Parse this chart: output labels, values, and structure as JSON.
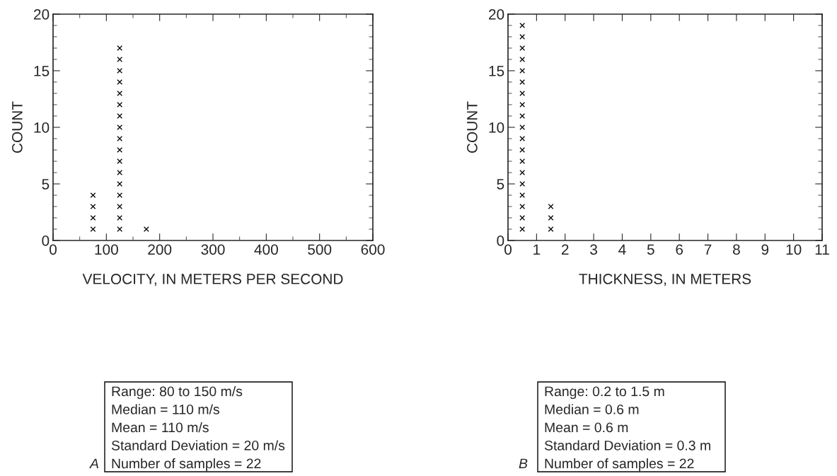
{
  "chart_data": [
    {
      "type": "scatter",
      "xlabel": "VELOCITY, IN METERS PER SECOND",
      "ylabel": "COUNT",
      "marker": "cross",
      "grid": false,
      "legend": false,
      "xlim": [
        0,
        600
      ],
      "xticks": [
        0,
        100,
        200,
        300,
        400,
        500,
        600
      ],
      "ylim": [
        0,
        20
      ],
      "yticks": [
        0,
        5,
        10,
        15,
        20
      ],
      "series": [
        {
          "color": "#000000",
          "x": [
            75,
            75,
            75,
            75,
            125,
            125,
            125,
            125,
            125,
            125,
            125,
            125,
            125,
            125,
            125,
            125,
            125,
            125,
            125,
            125,
            125,
            175
          ],
          "values": [
            1,
            2,
            3,
            4,
            1,
            2,
            3,
            4,
            5,
            6,
            7,
            8,
            9,
            10,
            11,
            12,
            13,
            14,
            15,
            16,
            17,
            1
          ]
        }
      ],
      "annotations": [
        "Range: 80 to 150 m/s",
        "Median = 110 m/s",
        "Mean = 110 m/s",
        "Standard Deviation = 20 m/s",
        "Number of samples = 22",
        "A"
      ]
    },
    {
      "type": "scatter",
      "xlabel": "THICKNESS, IN METERS",
      "ylabel": "COUNT",
      "marker": "cross",
      "grid": false,
      "legend": false,
      "xlim": [
        0,
        11
      ],
      "xticks": [
        0,
        1,
        2,
        3,
        4,
        5,
        6,
        7,
        8,
        9,
        10,
        11
      ],
      "ylim": [
        0,
        20
      ],
      "yticks": [
        0,
        5,
        10,
        15,
        20
      ],
      "series": [
        {
          "color": "#000000",
          "x": [
            0.5,
            0.5,
            0.5,
            0.5,
            0.5,
            0.5,
            0.5,
            0.5,
            0.5,
            0.5,
            0.5,
            0.5,
            0.5,
            0.5,
            0.5,
            0.5,
            0.5,
            0.5,
            0.5,
            1.5,
            1.5,
            1.5
          ],
          "values": [
            1,
            2,
            3,
            4,
            5,
            6,
            7,
            8,
            9,
            10,
            11,
            12,
            13,
            14,
            15,
            16,
            17,
            18,
            19,
            1,
            2,
            3
          ]
        }
      ],
      "annotations": [
        "Range: 0.2 to 1.5 m",
        "Median = 0.6 m",
        "Mean = 0.6 m",
        "Standard Deviation = 0.3 m",
        "Number of samples = 22",
        "B"
      ]
    }
  ]
}
